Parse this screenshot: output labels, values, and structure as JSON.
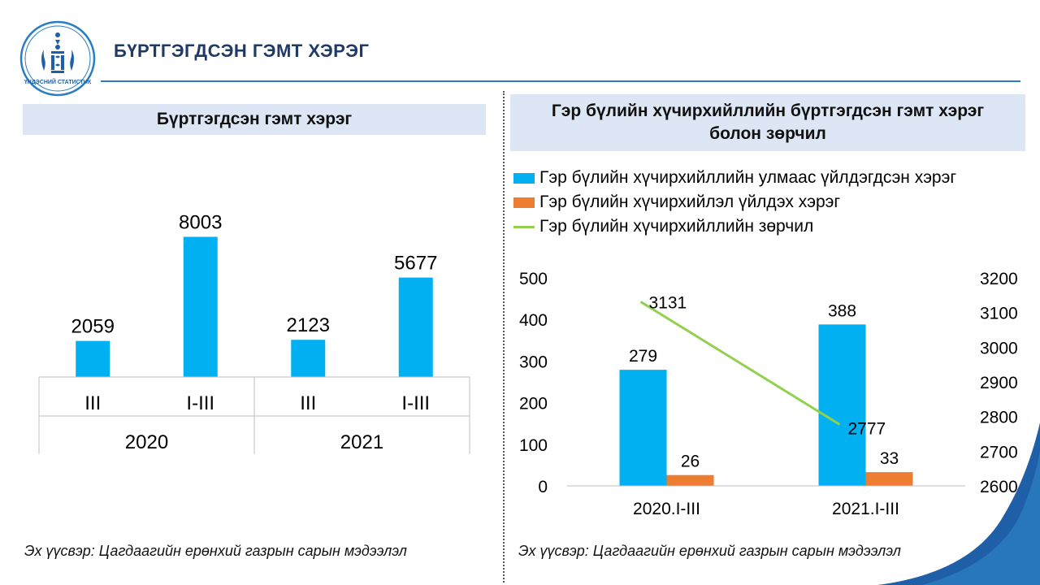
{
  "header": {
    "title": "БҮРТГЭГДСЭН ГЭМТ ХЭРЭГ",
    "logo_text": "ҮНДЭСНИЙ СТАТИСТИК"
  },
  "left_panel": {
    "heading": "Бүртгэгдсэн гэмт хэрэг",
    "source": "Эх үүсвэр: Цагдаагийн ерөнхий газрын сарын мэдээлэл"
  },
  "right_panel": {
    "heading_line1": "Гэр бүлийн хүчирхийллийн бүртгэгдсэн гэмт хэрэг",
    "heading_line2": "болон зөрчил",
    "source": "Эх үүсвэр: Цагдаагийн ерөнхий газрын сарын мэдээлэл"
  },
  "colors": {
    "blue": "#00b0f0",
    "orange": "#ed7d31",
    "green": "#92d050",
    "title": "#1f3a66",
    "panel_bg": "#dde6f4"
  },
  "chart_data": [
    {
      "type": "bar",
      "categories": [
        "III",
        "I-III",
        "III",
        "I-III"
      ],
      "groups": [
        {
          "label": "2020",
          "categories": [
            "III",
            "I-III"
          ]
        },
        {
          "label": "2021",
          "categories": [
            "III",
            "I-III"
          ]
        }
      ],
      "values": [
        2059,
        8003,
        2123,
        5677
      ],
      "data_labels": [
        "2059",
        "8003",
        "2123",
        "5677"
      ],
      "ylim": [
        0,
        9000
      ],
      "grid": false
    },
    {
      "type": "bar",
      "categories": [
        "2020.I-III",
        "2021.I-III"
      ],
      "series": [
        {
          "name": "Гэр бүлийн хүчирхийллийн улмаас үйлдэгдсэн хэрэг",
          "type": "bar",
          "axis": "left",
          "values": [
            279,
            388
          ]
        },
        {
          "name": "Гэр бүлийн хүчирхийлэл үйлдэх хэрэг",
          "type": "bar",
          "axis": "left",
          "values": [
            26,
            33
          ]
        },
        {
          "name": "Гэр бүлийн хүчирхийллийн зөрчил",
          "type": "line",
          "axis": "right",
          "values": [
            3131,
            2777
          ]
        }
      ],
      "y_left": {
        "lim": [
          0,
          500
        ],
        "ticks": [
          "0",
          "100",
          "200",
          "300",
          "400",
          "500"
        ]
      },
      "y_right": {
        "lim": [
          2600,
          3200
        ],
        "ticks": [
          "2600",
          "2700",
          "2800",
          "2900",
          "3000",
          "3100",
          "3200"
        ]
      },
      "legend_position": "top-left",
      "grid": false
    }
  ]
}
